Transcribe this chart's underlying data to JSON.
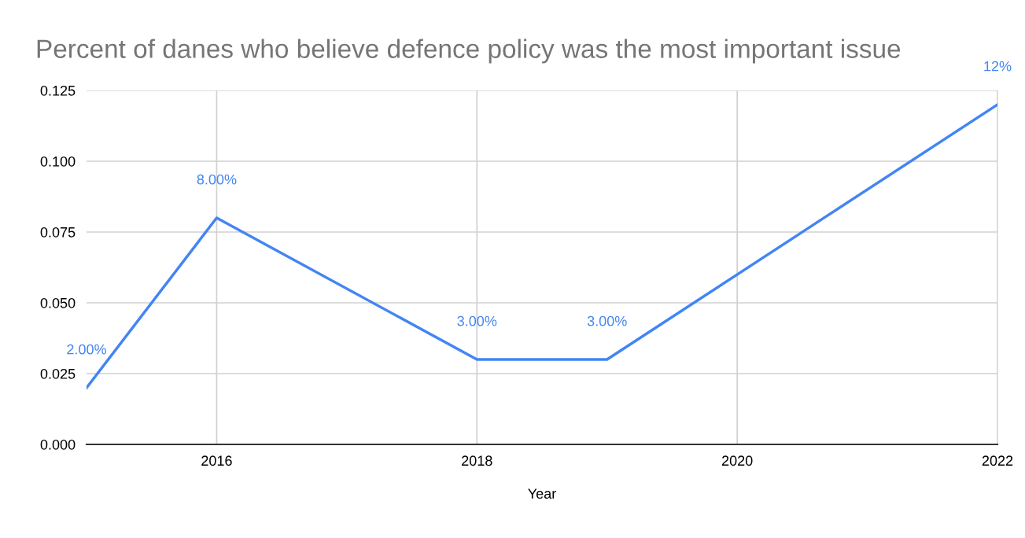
{
  "chart_data": {
    "type": "line",
    "title": "Percent of danes who believe defence policy was the most important issue",
    "xlabel": "Year",
    "x": [
      2015,
      2016,
      2018,
      2019,
      2022
    ],
    "series": [
      {
        "color": "#4285f4",
        "values": [
          0.02,
          0.08,
          0.03,
          0.03,
          0.12
        ],
        "value_labels": [
          "2.00%",
          "8.00%",
          "3.00%",
          "3.00%",
          "12%"
        ]
      }
    ],
    "xlim": [
      2015,
      2022
    ],
    "xticks": [
      2016,
      2018,
      2020,
      2022
    ],
    "ylim": [
      0,
      0.125
    ],
    "yticks": [
      {
        "value": 0,
        "label": "0.000"
      },
      {
        "value": 0.025,
        "label": "0.025"
      },
      {
        "value": 0.05,
        "label": "0.050"
      },
      {
        "value": 0.075,
        "label": "0.075"
      },
      {
        "value": 0.1,
        "label": "0.100"
      },
      {
        "value": 0.125,
        "label": "0.125"
      }
    ],
    "grid": true,
    "marker": "none",
    "line_style": "solid",
    "legend": false
  }
}
